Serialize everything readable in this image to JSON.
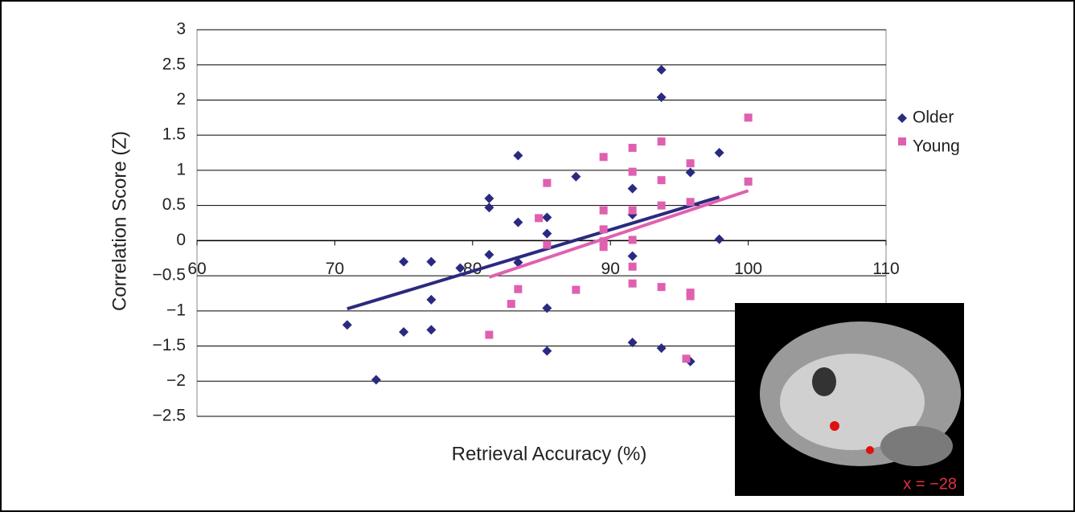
{
  "chart_data": {
    "type": "scatter",
    "x_label": "Retrieval Accuracy (%)",
    "y_label": "Correlation Score (Z)",
    "xlim": [
      60,
      110
    ],
    "xticks": [
      60,
      70,
      80,
      90,
      100,
      110
    ],
    "ylim": [
      -2.5,
      3
    ],
    "yticks": [
      {
        "value": -2.5,
        "label": "−2.5"
      },
      {
        "value": -2,
        "label": "−2"
      },
      {
        "value": -1.5,
        "label": "−1.5"
      },
      {
        "value": -1,
        "label": "−1"
      },
      {
        "value": -0.5,
        "label": "−0.5"
      },
      0,
      0.5,
      1,
      1.5,
      2,
      2.5,
      3
    ],
    "grid": true,
    "legend": "right",
    "annotation": "x = −28",
    "series": [
      {
        "name": "Older",
        "color": "#2a2a80",
        "marker": "diamond",
        "x": [
          70.9,
          73,
          75,
          75,
          77,
          77,
          77,
          79.1,
          81.2,
          81.2,
          81.2,
          83.3,
          83.3,
          83.3,
          85.4,
          85.4,
          85.4,
          85.4,
          87.5,
          91.6,
          91.6,
          91.6,
          91.6,
          93.7,
          93.7,
          93.7,
          95.8,
          95.8,
          97.9,
          97.9
        ],
        "values": [
          -1.2,
          -1.98,
          -0.3,
          -1.3,
          -0.3,
          -0.84,
          -1.27,
          -0.39,
          0.6,
          0.47,
          -0.2,
          1.21,
          0.26,
          -0.31,
          0.33,
          0.1,
          -0.96,
          -1.57,
          0.91,
          0.74,
          0.37,
          -0.22,
          -1.45,
          2.43,
          2.04,
          -1.53,
          0.97,
          -1.72,
          1.25,
          0.02
        ],
        "trend_x": [
          70.9,
          97.9
        ],
        "trend_y": [
          -0.97,
          0.62
        ]
      },
      {
        "name": "Young",
        "color": "#e060b0",
        "marker": "square",
        "x": [
          81.2,
          82.8,
          83.3,
          84.8,
          85.4,
          85.4,
          87.5,
          89.5,
          89.5,
          89.5,
          89.5,
          89.5,
          91.6,
          91.6,
          91.6,
          91.6,
          91.6,
          91.6,
          93.7,
          93.7,
          93.7,
          93.7,
          95.8,
          95.8,
          95.8,
          95.8,
          95.5,
          100,
          100
        ],
        "values": [
          -1.34,
          -0.9,
          -0.69,
          0.32,
          0.82,
          -0.06,
          -0.7,
          1.19,
          0.43,
          0.16,
          -0.01,
          -0.09,
          1.32,
          0.98,
          0.43,
          0.01,
          -0.37,
          -0.61,
          1.41,
          0.86,
          0.5,
          -0.66,
          1.1,
          0.55,
          -0.74,
          -0.79,
          -1.68,
          1.75,
          0.84
        ],
        "trend_x": [
          81.2,
          100
        ],
        "trend_y": [
          -0.52,
          0.71
        ]
      }
    ]
  }
}
